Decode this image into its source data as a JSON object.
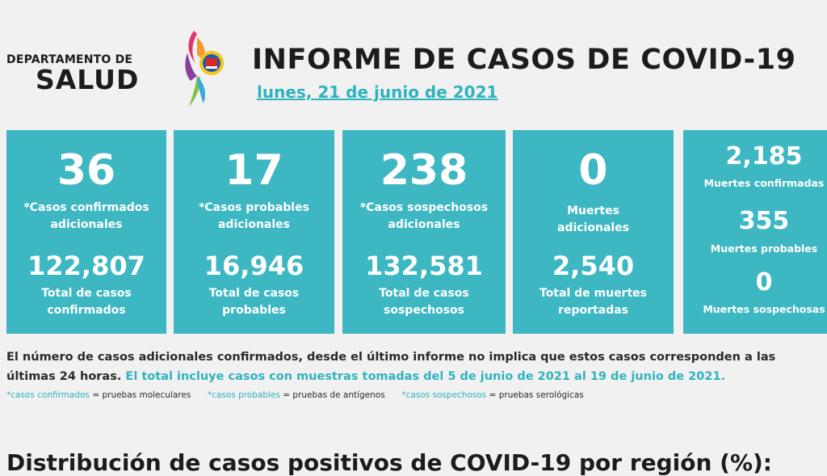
{
  "header": {
    "dept_line1": "DEPARTAMENTO DE",
    "dept_line2": "SALUD",
    "title": "INFORME DE CASOS DE COVID-19",
    "date": "lunes, 21 de junio de 2021"
  },
  "cards": [
    {
      "big": "36",
      "label1": "*Casos confirmados",
      "label2": "adicionales",
      "total": "122,807",
      "tlabel1": "Total de casos",
      "tlabel2": "confirmados"
    },
    {
      "big": "17",
      "label1": "*Casos probables",
      "label2": "adicionales",
      "total": "16,946",
      "tlabel1": "Total de casos",
      "tlabel2": "probables"
    },
    {
      "big": "238",
      "label1": "*Casos sospechosos",
      "label2": "adicionales",
      "total": "132,581",
      "tlabel1": "Total de casos",
      "tlabel2": "sospechosos"
    },
    {
      "big": "0",
      "label1": "Muertes",
      "label2": "adicionales",
      "total": "2,540",
      "tlabel1": "Total de muertes",
      "tlabel2": "reportadas"
    }
  ],
  "deaths": {
    "confirmed_value": "2,185",
    "confirmed_label": "Muertes confirmadas",
    "probable_value": "355",
    "probable_label": "Muertes probables",
    "suspected_value": "0",
    "suspected_label": "Muertes sospechosas"
  },
  "note": {
    "text1": "El número de casos adicionales confirmados, desde el último informe no implica que estos casos corresponden a las últimas 24 horas.",
    "text2": "El total incluye casos con muestras tomadas del 5 de junio de 2021 al 19 de junio de 2021."
  },
  "legend": [
    {
      "term": "*casos confirmados",
      "def": "= pruebas moleculares"
    },
    {
      "term": "*casos probables",
      "def": "= pruebas de antígenos"
    },
    {
      "term": "*casos sospechosos",
      "def": "= pruebas serológicas"
    }
  ],
  "section_title": "Distribución de casos positivos de COVID-19 por región (%):",
  "colors": {
    "accent": "#3db7c2",
    "accent_text": "#2fb3bf",
    "background": "#f1f1f1"
  }
}
